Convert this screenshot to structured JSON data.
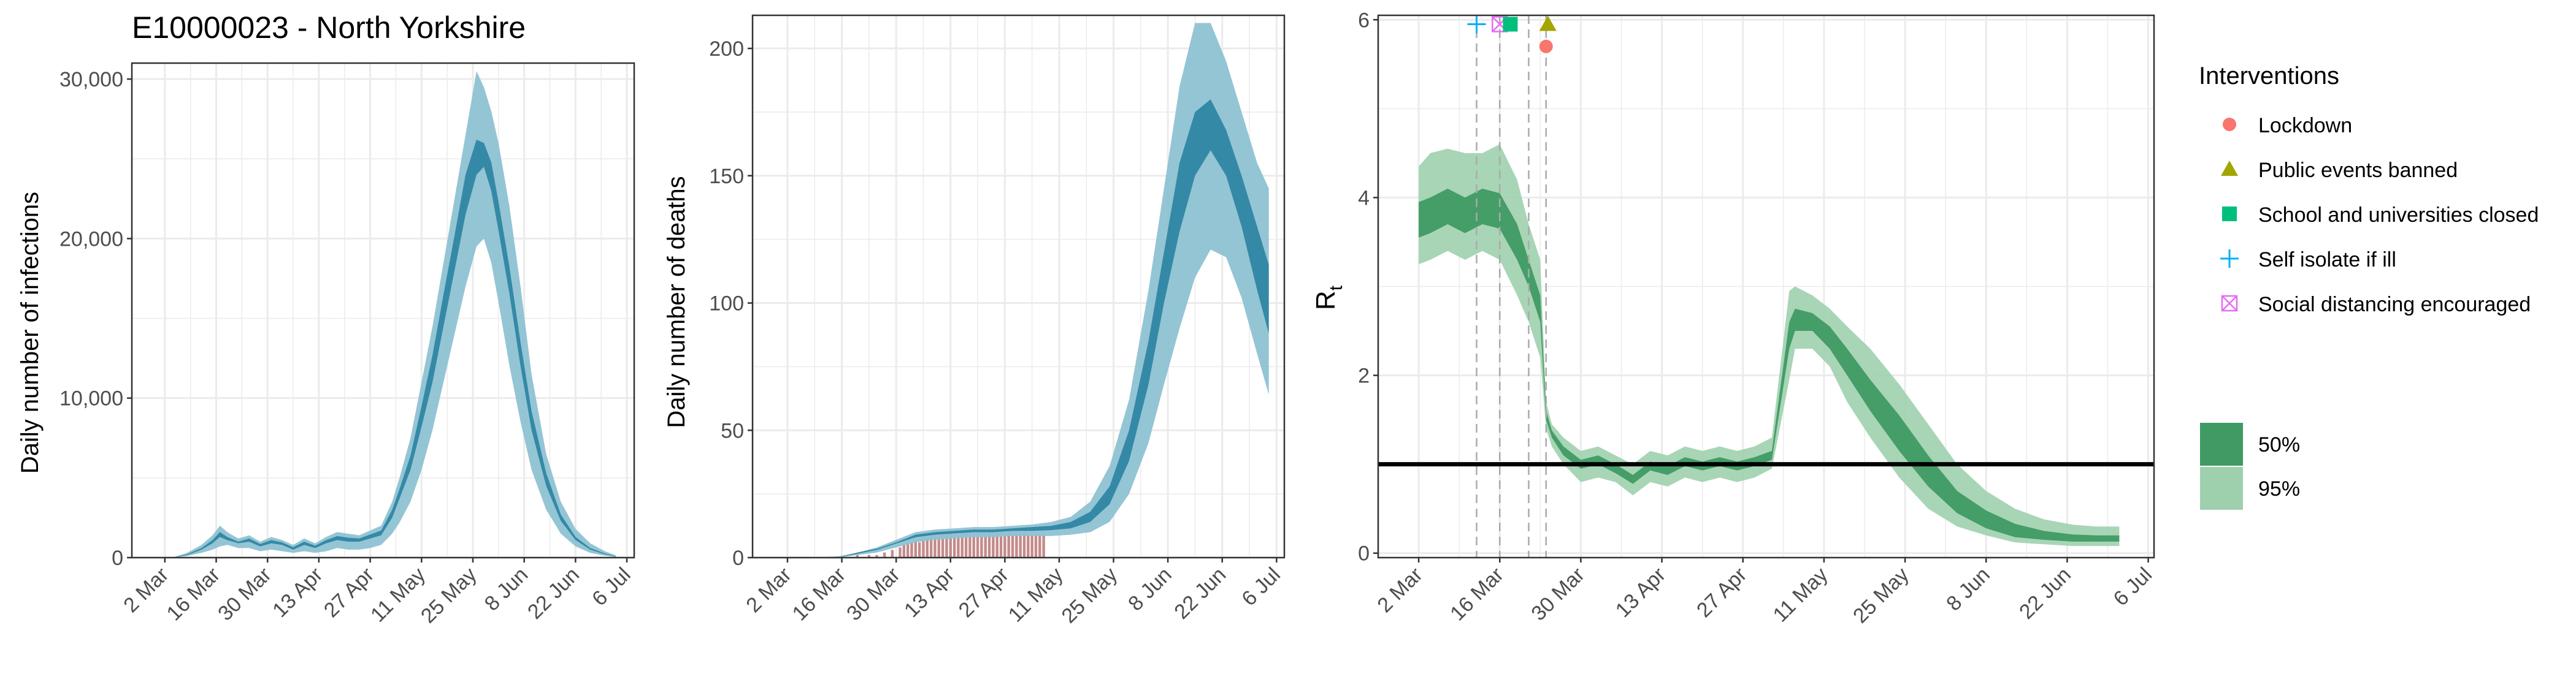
{
  "colors": {
    "blue_50": "#2e86a3",
    "blue_95": "#8ec2d3",
    "green_50": "#3f9a64",
    "green_95": "#9fd0ae",
    "bar": "#c48a8a",
    "grid": "#ebebeb",
    "lockdown": "#f8766d",
    "events": "#a3a500",
    "schools": "#00bf7d",
    "self_isolate": "#00b0f6",
    "distancing": "#e76bf3"
  },
  "chart_data": [
    {
      "type": "area",
      "id": "infections",
      "title": "E10000023 - North Yorkshire",
      "ylabel": "Daily number of infections",
      "xlabel": "",
      "xlim": [
        "2020-02-22",
        "2020-07-08"
      ],
      "ylim": [
        0,
        31000
      ],
      "yticks": [
        0,
        10000,
        20000,
        30000
      ],
      "ytick_labels": [
        "0",
        "10,000",
        "20,000",
        "30,000"
      ],
      "xticks": [
        "2020-03-02",
        "2020-03-16",
        "2020-03-30",
        "2020-04-13",
        "2020-04-27",
        "2020-05-11",
        "2020-05-25",
        "2020-06-08",
        "2020-06-22",
        "2020-07-06"
      ],
      "xtick_labels": [
        "2 Mar",
        "16 Mar",
        "30 Mar",
        "13 Apr",
        "27 Apr",
        "11 May",
        "25 May",
        "8 Jun",
        "22 Jun",
        "6 Jul"
      ],
      "grid": true,
      "x": [
        "2020-02-28",
        "2020-03-04",
        "2020-03-08",
        "2020-03-12",
        "2020-03-15",
        "2020-03-17",
        "2020-03-19",
        "2020-03-22",
        "2020-03-25",
        "2020-03-28",
        "2020-03-31",
        "2020-04-03",
        "2020-04-06",
        "2020-04-09",
        "2020-04-12",
        "2020-04-15",
        "2020-04-18",
        "2020-04-21",
        "2020-04-24",
        "2020-04-27",
        "2020-04-30",
        "2020-05-03",
        "2020-05-05",
        "2020-05-08",
        "2020-05-11",
        "2020-05-14",
        "2020-05-17",
        "2020-05-20",
        "2020-05-23",
        "2020-05-26",
        "2020-05-28",
        "2020-05-30",
        "2020-06-01",
        "2020-06-04",
        "2020-06-07",
        "2020-06-10",
        "2020-06-14",
        "2020-06-18",
        "2020-06-22",
        "2020-06-26",
        "2020-06-30",
        "2020-07-03"
      ],
      "series": [
        {
          "band": "95%",
          "lower": [
            0,
            0,
            100,
            300,
            500,
            700,
            800,
            600,
            600,
            400,
            500,
            400,
            300,
            400,
            300,
            400,
            600,
            500,
            500,
            600,
            800,
            1500,
            2200,
            3500,
            5500,
            8000,
            11000,
            14000,
            17000,
            19500,
            20000,
            18500,
            16000,
            12000,
            8500,
            5500,
            3000,
            1500,
            700,
            300,
            120,
            40
          ],
          "upper": [
            0,
            0,
            300,
            800,
            1400,
            2000,
            1600,
            1200,
            1400,
            1000,
            1300,
            1100,
            800,
            1200,
            900,
            1300,
            1600,
            1500,
            1400,
            1700,
            2000,
            3500,
            5000,
            7500,
            11000,
            14500,
            18500,
            22500,
            26500,
            30500,
            29500,
            28000,
            26000,
            22000,
            17000,
            11500,
            6500,
            3500,
            1800,
            900,
            400,
            150
          ]
        },
        {
          "band": "50%",
          "lower": [
            0,
            0,
            150,
            500,
            900,
            1300,
            1100,
            900,
            1000,
            700,
            900,
            800,
            500,
            800,
            600,
            900,
            1100,
            1000,
            1000,
            1200,
            1400,
            2500,
            3700,
            5500,
            8200,
            11000,
            14500,
            18000,
            21500,
            24000,
            24500,
            23000,
            20500,
            16500,
            12000,
            8000,
            4500,
            2300,
            1100,
            500,
            200,
            60
          ],
          "upper": [
            0,
            0,
            200,
            600,
            1100,
            1600,
            1300,
            1000,
            1200,
            850,
            1100,
            950,
            650,
            1000,
            750,
            1100,
            1350,
            1250,
            1200,
            1450,
            1700,
            3000,
            4300,
            6400,
            9500,
            12700,
            16500,
            20200,
            24000,
            26200,
            26000,
            24800,
            22300,
            18200,
            13500,
            9200,
            5300,
            2700,
            1300,
            600,
            260,
            80
          ]
        }
      ]
    },
    {
      "type": "area",
      "id": "deaths",
      "title": "",
      "ylabel": "Daily number of deaths",
      "xlabel": "",
      "xlim": [
        "2020-02-22",
        "2020-07-08"
      ],
      "ylim": [
        0,
        213
      ],
      "yticks": [
        0,
        50,
        100,
        150,
        200
      ],
      "ytick_labels": [
        "0",
        "50",
        "100",
        "150",
        "200"
      ],
      "xticks": [
        "2020-03-02",
        "2020-03-16",
        "2020-03-30",
        "2020-04-13",
        "2020-04-27",
        "2020-05-11",
        "2020-05-25",
        "2020-06-08",
        "2020-06-22",
        "2020-07-06"
      ],
      "xtick_labels": [
        "2 Mar",
        "16 Mar",
        "30 Mar",
        "13 Apr",
        "27 Apr",
        "11 May",
        "25 May",
        "8 Jun",
        "22 Jun",
        "6 Jul"
      ],
      "grid": true,
      "bars": {
        "x": [
          "2020-03-20",
          "2020-03-23",
          "2020-03-25",
          "2020-03-27",
          "2020-03-29",
          "2020-03-31",
          "2020-04-01",
          "2020-04-02",
          "2020-04-03",
          "2020-04-04",
          "2020-04-05",
          "2020-04-06",
          "2020-04-07",
          "2020-04-08",
          "2020-04-09",
          "2020-04-10",
          "2020-04-11",
          "2020-04-12",
          "2020-04-13",
          "2020-04-14",
          "2020-04-15",
          "2020-04-16",
          "2020-04-17",
          "2020-04-18",
          "2020-04-19",
          "2020-04-20",
          "2020-04-21",
          "2020-04-22",
          "2020-04-23",
          "2020-04-24",
          "2020-04-25",
          "2020-04-26",
          "2020-04-27",
          "2020-04-28",
          "2020-04-29",
          "2020-04-30",
          "2020-05-01",
          "2020-05-02",
          "2020-05-03",
          "2020-05-04",
          "2020-05-05",
          "2020-05-06",
          "2020-05-07"
        ],
        "values": [
          1,
          1,
          1,
          2,
          3,
          4,
          5,
          6,
          6,
          7,
          6,
          8,
          8,
          9,
          9,
          10,
          9,
          10,
          10,
          10,
          9,
          10,
          10,
          10,
          11,
          10,
          11,
          10,
          10,
          10,
          11,
          11,
          10,
          12,
          11,
          11,
          10,
          10,
          9,
          9,
          9,
          9,
          9
        ]
      },
      "x": [
        "2020-03-08",
        "2020-03-15",
        "2020-03-20",
        "2020-03-25",
        "2020-03-30",
        "2020-04-04",
        "2020-04-09",
        "2020-04-14",
        "2020-04-19",
        "2020-04-24",
        "2020-04-29",
        "2020-05-04",
        "2020-05-09",
        "2020-05-14",
        "2020-05-19",
        "2020-05-24",
        "2020-05-29",
        "2020-06-03",
        "2020-06-07",
        "2020-06-11",
        "2020-06-15",
        "2020-06-19",
        "2020-06-23",
        "2020-06-27",
        "2020-07-01",
        "2020-07-04"
      ],
      "series": [
        {
          "band": "95%",
          "lower": [
            0,
            0,
            1,
            2,
            4,
            6,
            7,
            7.5,
            8,
            8,
            8.5,
            8.5,
            8.5,
            9,
            10,
            14,
            25,
            45,
            68,
            90,
            110,
            121,
            118,
            102,
            80,
            64
          ],
          "upper": [
            0,
            0.5,
            2,
            4,
            7,
            10,
            11,
            11.5,
            12,
            12,
            12.5,
            13,
            14,
            16,
            22,
            36,
            62,
            105,
            145,
            185,
            210,
            210,
            195,
            175,
            155,
            145
          ]
        },
        {
          "band": "50%",
          "lower": [
            0,
            0,
            1.5,
            3,
            5.5,
            8,
            9,
            9.5,
            10,
            10,
            10.5,
            10.5,
            10.8,
            11.5,
            14,
            21,
            38,
            68,
            100,
            128,
            150,
            160,
            150,
            130,
            105,
            88
          ],
          "upper": [
            0,
            0,
            2,
            3.5,
            6,
            9,
            10,
            10.5,
            11,
            11,
            11.5,
            12,
            12.5,
            14,
            18,
            28,
            50,
            85,
            120,
            155,
            175,
            180,
            168,
            150,
            130,
            115
          ]
        }
      ]
    },
    {
      "type": "area",
      "id": "rt",
      "title": "",
      "ylabel": "R",
      "ylabel_sub": "t",
      "xlabel": "",
      "xlim": [
        "2020-02-24",
        "2020-07-07"
      ],
      "ylim": [
        -0.05,
        6.05
      ],
      "yticks": [
        0,
        2,
        4,
        6
      ],
      "ytick_labels": [
        "0",
        "2",
        "4",
        "6"
      ],
      "xticks": [
        "2020-03-02",
        "2020-03-16",
        "2020-03-30",
        "2020-04-13",
        "2020-04-27",
        "2020-05-11",
        "2020-05-25",
        "2020-06-08",
        "2020-06-22",
        "2020-07-06"
      ],
      "xtick_labels": [
        "2 Mar",
        "16 Mar",
        "30 Mar",
        "13 Apr",
        "27 Apr",
        "11 May",
        "25 May",
        "8 Jun",
        "22 Jun",
        "6 Jul"
      ],
      "grid": true,
      "reference_line": 1,
      "interventions": [
        {
          "name": "Self isolate if ill",
          "date": "2020-03-12",
          "shape": "plus",
          "color_key": "self_isolate",
          "y": 5.95
        },
        {
          "name": "Social distancing encouraged",
          "date": "2020-03-16",
          "shape": "box-x",
          "color_key": "distancing",
          "y": 5.95
        },
        {
          "name": "School and universities closed",
          "date": "2020-03-21",
          "shape": "square",
          "color_key": "schools",
          "y": 5.95
        },
        {
          "name": "Public events banned",
          "date": "2020-03-24",
          "shape": "triangle",
          "color_key": "events",
          "y": 5.95
        },
        {
          "name": "Lockdown",
          "date": "2020-03-24",
          "shape": "circle",
          "color_key": "lockdown",
          "y": 5.7
        }
      ],
      "x": [
        "2020-03-02",
        "2020-03-04",
        "2020-03-07",
        "2020-03-10",
        "2020-03-13",
        "2020-03-16",
        "2020-03-19",
        "2020-03-21",
        "2020-03-23",
        "2020-03-24",
        "2020-03-25",
        "2020-03-27",
        "2020-03-30",
        "2020-04-02",
        "2020-04-05",
        "2020-04-08",
        "2020-04-11",
        "2020-04-14",
        "2020-04-17",
        "2020-04-20",
        "2020-04-23",
        "2020-04-26",
        "2020-04-29",
        "2020-05-02",
        "2020-05-05",
        "2020-05-06",
        "2020-05-09",
        "2020-05-12",
        "2020-05-15",
        "2020-05-19",
        "2020-05-24",
        "2020-05-29",
        "2020-06-03",
        "2020-06-08",
        "2020-06-13",
        "2020-06-18",
        "2020-06-23",
        "2020-06-27",
        "2020-07-01"
      ],
      "series": [
        {
          "band": "95%",
          "lower": [
            3.25,
            3.3,
            3.4,
            3.3,
            3.4,
            3.3,
            2.9,
            2.6,
            2.2,
            1.4,
            1.2,
            1.0,
            0.8,
            0.85,
            0.8,
            0.65,
            0.8,
            0.75,
            0.85,
            0.8,
            0.85,
            0.8,
            0.85,
            0.95,
            1.95,
            2.3,
            2.3,
            2.1,
            1.7,
            1.3,
            0.85,
            0.5,
            0.3,
            0.2,
            0.12,
            0.1,
            0.08,
            0.08,
            0.08
          ],
          "upper": [
            4.35,
            4.5,
            4.55,
            4.5,
            4.5,
            4.6,
            4.2,
            3.7,
            3.3,
            1.7,
            1.45,
            1.3,
            1.15,
            1.2,
            1.1,
            1.0,
            1.15,
            1.1,
            1.2,
            1.15,
            1.2,
            1.15,
            1.2,
            1.3,
            2.95,
            3.0,
            2.9,
            2.75,
            2.55,
            2.3,
            1.9,
            1.45,
            1.0,
            0.7,
            0.5,
            0.38,
            0.32,
            0.3,
            0.3
          ]
        },
        {
          "band": "50%",
          "lower": [
            3.55,
            3.6,
            3.7,
            3.6,
            3.7,
            3.65,
            3.3,
            3.0,
            2.6,
            1.5,
            1.3,
            1.1,
            0.95,
            1.0,
            0.9,
            0.78,
            0.93,
            0.88,
            0.98,
            0.93,
            0.98,
            0.93,
            0.98,
            1.05,
            2.3,
            2.5,
            2.5,
            2.3,
            2.0,
            1.6,
            1.15,
            0.75,
            0.45,
            0.28,
            0.18,
            0.15,
            0.13,
            0.13,
            0.13
          ],
          "upper": [
            3.95,
            4.0,
            4.1,
            4.0,
            4.1,
            4.05,
            3.7,
            3.3,
            2.9,
            1.6,
            1.38,
            1.2,
            1.05,
            1.1,
            1.0,
            0.88,
            1.03,
            0.98,
            1.08,
            1.03,
            1.08,
            1.03,
            1.08,
            1.15,
            2.6,
            2.75,
            2.7,
            2.55,
            2.3,
            1.95,
            1.55,
            1.1,
            0.7,
            0.48,
            0.33,
            0.25,
            0.21,
            0.2,
            0.2
          ]
        }
      ]
    }
  ],
  "legend": {
    "interventions_title": "Interventions",
    "items": [
      {
        "label": "Lockdown",
        "shape": "circle",
        "color_key": "lockdown"
      },
      {
        "label": "Public events banned",
        "shape": "triangle",
        "color_key": "events"
      },
      {
        "label": "School and universities closed",
        "shape": "square",
        "color_key": "schools"
      },
      {
        "label": "Self isolate if ill",
        "shape": "plus",
        "color_key": "self_isolate"
      },
      {
        "label": "Social distancing encouraged",
        "shape": "box-x",
        "color_key": "distancing"
      }
    ],
    "ci_items": [
      {
        "label": "50%",
        "color_key": "green_50"
      },
      {
        "label": "95%",
        "color_key": "green_95"
      }
    ]
  }
}
